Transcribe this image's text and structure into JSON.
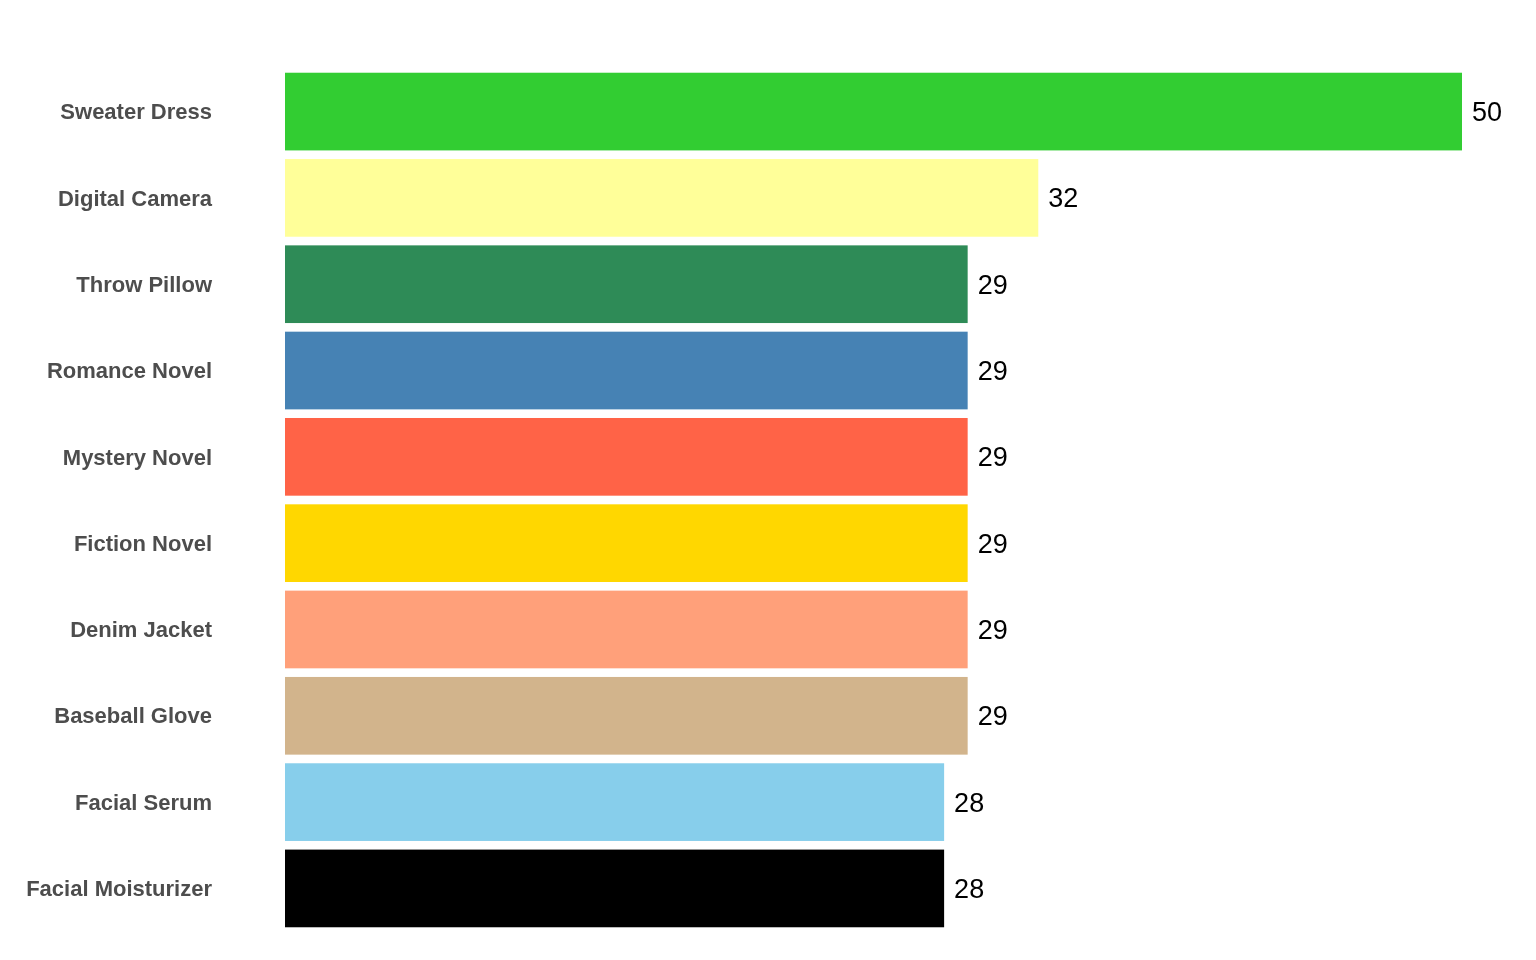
{
  "chart_data": {
    "type": "bar",
    "orientation": "horizontal",
    "data_labels": true,
    "xlim": [
      0,
      50
    ],
    "categories": [
      "Sweater Dress",
      "Digital Camera",
      "Throw Pillow",
      "Romance Novel",
      "Mystery Novel",
      "Fiction Novel",
      "Denim Jacket",
      "Baseball Glove",
      "Facial Serum",
      "Facial Moisturizer"
    ],
    "values": [
      50,
      32,
      29,
      29,
      29,
      29,
      29,
      29,
      28,
      28
    ],
    "colors": [
      "#32cd32",
      "#ffff99",
      "#2e8b57",
      "#4682b4",
      "#ff6347",
      "#ffd700",
      "#ffa07a",
      "#d2b48c",
      "#87ceeb",
      "#000000"
    ]
  }
}
